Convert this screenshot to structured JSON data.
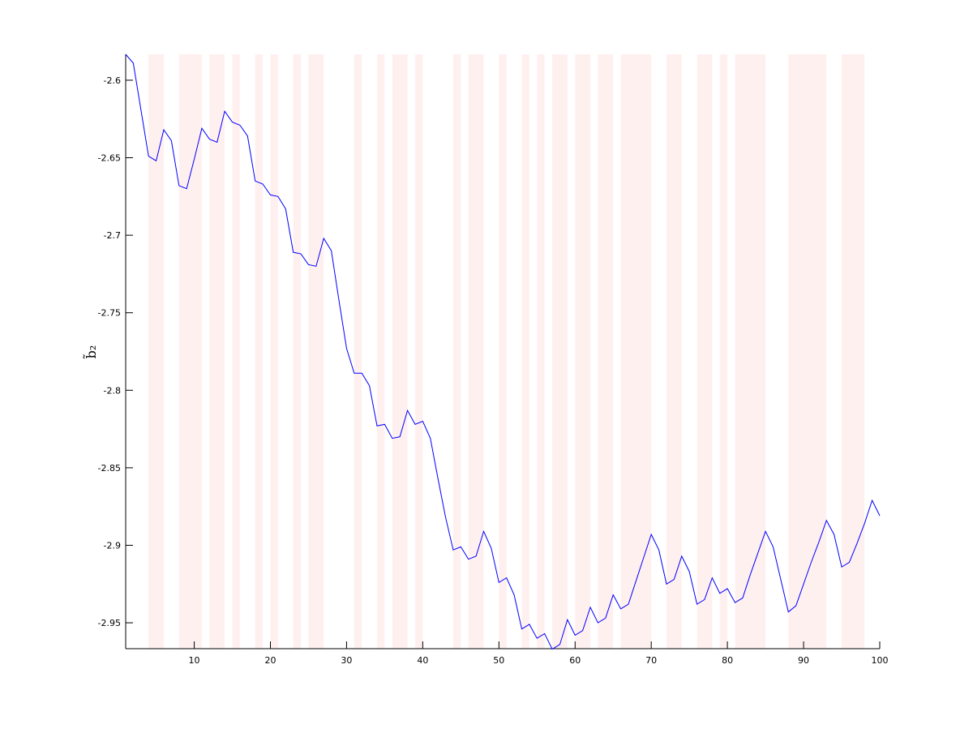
{
  "chart_data": {
    "type": "line",
    "y_label": "b̃₂",
    "x": [
      1,
      2,
      3,
      4,
      5,
      6,
      7,
      8,
      9,
      10,
      11,
      12,
      13,
      14,
      15,
      16,
      17,
      18,
      19,
      20,
      21,
      22,
      23,
      24,
      25,
      26,
      27,
      28,
      29,
      30,
      31,
      32,
      33,
      34,
      35,
      36,
      37,
      38,
      39,
      40,
      41,
      42,
      43,
      44,
      45,
      46,
      47,
      48,
      49,
      50,
      51,
      52,
      53,
      54,
      55,
      56,
      57,
      58,
      59,
      60,
      61,
      62,
      63,
      64,
      65,
      66,
      67,
      68,
      69,
      70,
      71,
      72,
      73,
      74,
      75,
      76,
      77,
      78,
      79,
      80,
      81,
      82,
      83,
      84,
      85,
      86,
      87,
      88,
      89,
      90,
      91,
      92,
      93,
      94,
      95,
      96,
      97,
      98,
      99,
      100
    ],
    "series": [
      {
        "color": "#0000ff",
        "values": [
          -2.5833,
          -2.589,
          -2.619,
          -2.649,
          -2.652,
          -2.632,
          -2.639,
          -2.668,
          -2.67,
          -2.651,
          -2.631,
          -2.638,
          -2.64,
          -2.62,
          -2.627,
          -2.629,
          -2.636,
          -2.665,
          -2.667,
          -2.674,
          -2.675,
          -2.683,
          -2.711,
          -2.712,
          -2.719,
          -2.72,
          -2.702,
          -2.71,
          -2.742,
          -2.773,
          -2.789,
          -2.789,
          -2.797,
          -2.823,
          -2.822,
          -2.831,
          -2.83,
          -2.813,
          -2.822,
          -2.82,
          -2.831,
          -2.857,
          -2.882,
          -2.903,
          -2.901,
          -2.909,
          -2.907,
          -2.891,
          -2.902,
          -2.924,
          -2.921,
          -2.932,
          -2.954,
          -2.951,
          -2.96,
          -2.957,
          -2.967,
          -2.964,
          -2.948,
          -2.958,
          -2.955,
          -2.94,
          -2.95,
          -2.947,
          -2.932,
          -2.941,
          -2.938,
          -2.923,
          -2.908,
          -2.893,
          -2.903,
          -2.925,
          -2.922,
          -2.907,
          -2.917,
          -2.938,
          -2.935,
          -2.921,
          -2.931,
          -2.928,
          -2.937,
          -2.934,
          -2.919,
          -2.905,
          -2.891,
          -2.901,
          -2.922,
          -2.943,
          -2.939,
          -2.925,
          -2.911,
          -2.898,
          -2.884,
          -2.893,
          -2.914,
          -2.911,
          -2.899,
          -2.886,
          -2.871,
          -2.881
        ]
      }
    ],
    "shaded_regions": [
      [
        4,
        6
      ],
      [
        8,
        11
      ],
      [
        12,
        14
      ],
      [
        15,
        16
      ],
      [
        18,
        19
      ],
      [
        20,
        21
      ],
      [
        23,
        24
      ],
      [
        25,
        27
      ],
      [
        31,
        32
      ],
      [
        34,
        35
      ],
      [
        36,
        38
      ],
      [
        39,
        40
      ],
      [
        44,
        45
      ],
      [
        46,
        48
      ],
      [
        50,
        51
      ],
      [
        53,
        54
      ],
      [
        55,
        56
      ],
      [
        57,
        59
      ],
      [
        60,
        62
      ],
      [
        63,
        65
      ],
      [
        66,
        70
      ],
      [
        72,
        74
      ],
      [
        76,
        78
      ],
      [
        79,
        80
      ],
      [
        81,
        85
      ],
      [
        88,
        93
      ],
      [
        95,
        98
      ]
    ],
    "shade_color": "#fff0f0",
    "xlim": [
      1,
      100
    ],
    "xticks": [
      10,
      20,
      30,
      40,
      50,
      60,
      70,
      80,
      90,
      100
    ],
    "ylim": [
      -2.9667,
      -2.5833
    ],
    "yticks": [
      -2.95,
      -2.9,
      -2.85,
      -2.8,
      -2.75,
      -2.7,
      -2.65,
      -2.6
    ]
  }
}
